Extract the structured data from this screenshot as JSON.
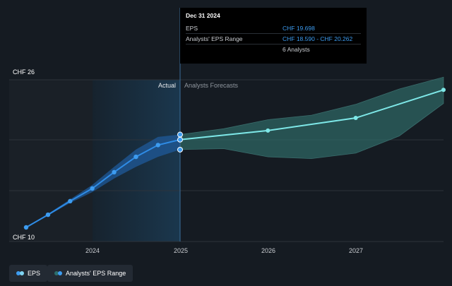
{
  "tooltip": {
    "title": "Dec 31 2024",
    "rows": [
      {
        "label": "EPS",
        "value": "CHF 19.698"
      },
      {
        "label": "Analysts' EPS Range",
        "value": "CHF 18.590 - CHF 20.262"
      },
      {
        "label": "",
        "value": "6 Analysts"
      }
    ]
  },
  "legend": [
    {
      "label": "EPS",
      "color": "#3d9cf0",
      "color2": "#7fd4f2"
    },
    {
      "label": "Analysts' EPS Range",
      "color": "#2c6e6c",
      "color2": "#3d9cf0"
    }
  ],
  "colors": {
    "eps": "#2f8ce6",
    "forecast": "#7ee8e8",
    "range_band": "#2f6a66",
    "hist_band": "#1f5a9a",
    "highlight": "#1b3a52",
    "grid": "#2d333b"
  },
  "chart_data": {
    "type": "line",
    "y_tick_labels": [
      "CHF 26",
      "CHF 10"
    ],
    "ylim": [
      10,
      26
    ],
    "x_tick_labels": [
      "2024",
      "2025",
      "2026",
      "2027"
    ],
    "section_labels": {
      "actual": "Actual",
      "forecast": "Analysts Forecasts"
    },
    "grid": true,
    "series": [
      {
        "name": "EPS",
        "x": [
          "2023-03-31",
          "2023-06-30",
          "2023-09-30",
          "2023-12-31",
          "2024-03-31",
          "2024-06-30",
          "2024-09-30",
          "2024-12-31"
        ],
        "y": [
          10.0,
          11.4,
          12.9,
          14.3,
          16.1,
          17.8,
          19.1,
          19.698
        ],
        "marker": true
      },
      {
        "name": "EPS forecast",
        "x": [
          "2024-12-31",
          "2025-12-31",
          "2026-12-31",
          "2027-12-31"
        ],
        "y": [
          19.698,
          20.7,
          22.1,
          25.2
        ],
        "marker": true
      }
    ],
    "range": {
      "name": "Analysts' EPS Range",
      "x": [
        "2023-03-31",
        "2023-06-30",
        "2023-09-30",
        "2023-12-31",
        "2024-03-31",
        "2024-06-30",
        "2024-09-30",
        "2024-12-31",
        "2025-06-30",
        "2025-12-31",
        "2026-06-30",
        "2026-12-31",
        "2027-06-30",
        "2027-12-31"
      ],
      "low": [
        10.0,
        11.3,
        12.7,
        13.9,
        15.4,
        16.7,
        17.8,
        18.59,
        18.7,
        17.8,
        17.6,
        18.2,
        20.1,
        23.7
      ],
      "high": [
        10.0,
        11.5,
        13.1,
        14.7,
        16.7,
        18.6,
        20.0,
        20.262,
        20.9,
        21.9,
        22.4,
        23.6,
        25.3,
        26.6
      ]
    },
    "highlight": {
      "from": "2024-01-01",
      "to": "2024-12-31"
    }
  }
}
